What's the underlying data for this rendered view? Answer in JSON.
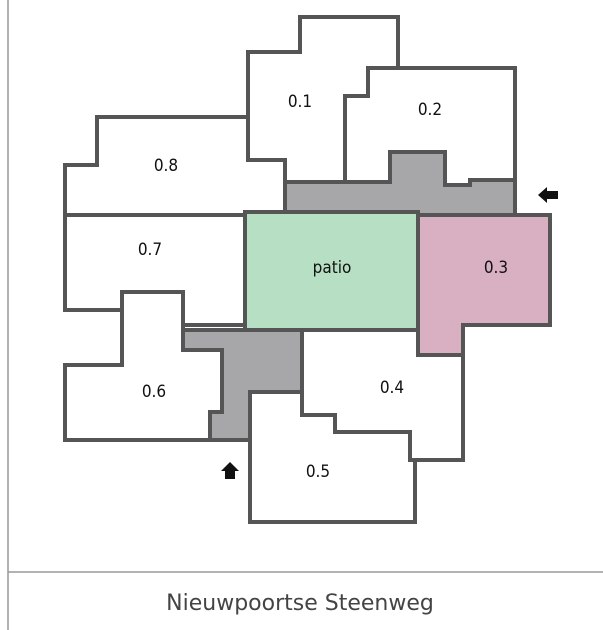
{
  "rooms": [
    {
      "label": "0.1"
    },
    {
      "label": "0.2"
    },
    {
      "label": "0.3"
    },
    {
      "label": "0.4"
    },
    {
      "label": "0.5"
    },
    {
      "label": "0.6"
    },
    {
      "label": "0.7"
    },
    {
      "label": "0.8"
    },
    {
      "label": "patio"
    }
  ],
  "street": "Nieuwpoortse Steenweg"
}
